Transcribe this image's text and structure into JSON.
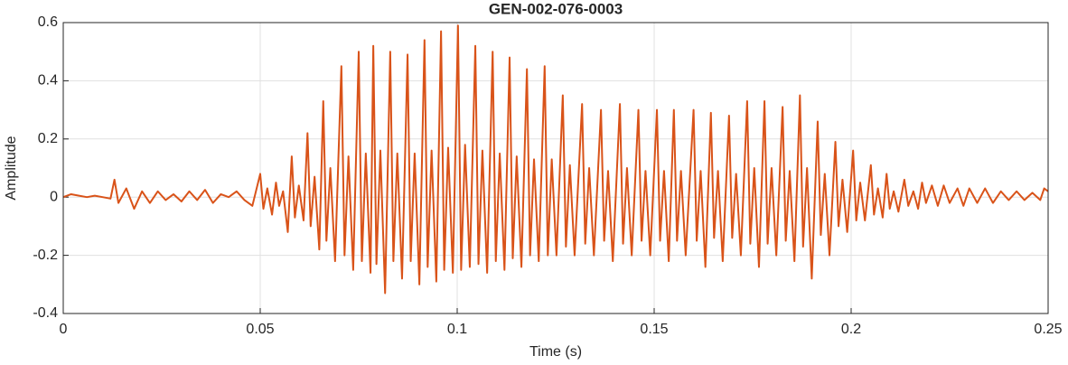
{
  "chart_data": {
    "type": "line",
    "title": "GEN-002-076-0003",
    "x_label": "Time (s)",
    "y_label": "Amplitude",
    "xlim": [
      0,
      0.25
    ],
    "xticks": [
      0,
      0.05,
      0.1,
      0.15,
      0.2,
      0.25
    ],
    "ylim": [
      -0.4,
      0.6
    ],
    "yticks": [
      -0.4,
      -0.2,
      0,
      0.2,
      0.4,
      0.6
    ],
    "grid": true,
    "x": [
      0,
      0.002,
      0.004,
      0.006,
      0.008,
      0.01,
      0.012,
      0.013,
      0.014,
      0.016,
      0.018,
      0.02,
      0.022,
      0.024,
      0.026,
      0.028,
      0.03,
      0.032,
      0.034,
      0.036,
      0.038,
      0.04,
      0.042,
      0.044,
      0.046,
      0.048,
      0.05,
      0.0508,
      0.0518,
      0.053,
      0.054,
      0.0548,
      0.0558,
      0.057,
      0.058,
      0.0588,
      0.0598,
      0.061,
      0.062,
      0.0628,
      0.0638,
      0.065,
      0.066,
      0.0668,
      0.0678,
      0.069,
      0.0706,
      0.0714,
      0.0724,
      0.0736,
      0.075,
      0.0758,
      0.0768,
      0.078,
      0.0787,
      0.0795,
      0.0805,
      0.0817,
      0.083,
      0.0838,
      0.0848,
      0.086,
      0.0874,
      0.0882,
      0.0892,
      0.0904,
      0.0917,
      0.0925,
      0.0935,
      0.0947,
      0.0959,
      0.0967,
      0.0977,
      0.0989,
      0.1002,
      0.101,
      0.102,
      0.1032,
      0.1046,
      0.1054,
      0.1064,
      0.1076,
      0.109,
      0.1098,
      0.1108,
      0.112,
      0.1133,
      0.1141,
      0.1151,
      0.1163,
      0.1177,
      0.1185,
      0.1195,
      0.1207,
      0.1222,
      0.123,
      0.124,
      0.1252,
      0.1268,
      0.1276,
      0.1286,
      0.1298,
      0.1317,
      0.1325,
      0.1335,
      0.1347,
      0.1365,
      0.1373,
      0.1383,
      0.1395,
      0.1413,
      0.1421,
      0.1431,
      0.1443,
      0.146,
      0.1468,
      0.1478,
      0.149,
      0.1507,
      0.1515,
      0.1525,
      0.1537,
      0.155,
      0.1558,
      0.1568,
      0.158,
      0.16,
      0.1608,
      0.1618,
      0.163,
      0.1644,
      0.1652,
      0.1662,
      0.1674,
      0.169,
      0.1698,
      0.1708,
      0.172,
      0.1736,
      0.1744,
      0.1754,
      0.1766,
      0.178,
      0.1788,
      0.1798,
      0.181,
      0.1826,
      0.1834,
      0.1844,
      0.1856,
      0.187,
      0.1878,
      0.1888,
      0.19,
      0.1915,
      0.1923,
      0.1933,
      0.1945,
      0.196,
      0.1968,
      0.1978,
      0.199,
      0.2005,
      0.2013,
      0.2023,
      0.2035,
      0.205,
      0.2058,
      0.2068,
      0.208,
      0.209,
      0.2098,
      0.2108,
      0.212,
      0.2135,
      0.2145,
      0.2158,
      0.217,
      0.218,
      0.219,
      0.2205,
      0.222,
      0.2235,
      0.225,
      0.227,
      0.2285,
      0.23,
      0.232,
      0.234,
      0.236,
      0.238,
      0.24,
      0.242,
      0.244,
      0.246,
      0.248,
      0.249,
      0.25
    ],
    "series": [
      {
        "name": "Amplitude",
        "color": "#d95319",
        "values": [
          0,
          0.01,
          0.005,
          0,
          0.005,
          0,
          -0.005,
          0.06,
          -0.02,
          0.03,
          -0.04,
          0.02,
          -0.02,
          0.02,
          -0.01,
          0.01,
          -0.015,
          0.02,
          -0.01,
          0.025,
          -0.02,
          0.01,
          0,
          0.02,
          -0.01,
          -0.03,
          0.08,
          -0.04,
          0.03,
          -0.06,
          0.05,
          -0.03,
          0.02,
          -0.12,
          0.14,
          -0.07,
          0.04,
          -0.08,
          0.22,
          -0.1,
          0.07,
          -0.18,
          0.33,
          -0.15,
          0.1,
          -0.22,
          0.45,
          -0.2,
          0.14,
          -0.25,
          0.5,
          -0.22,
          0.15,
          -0.26,
          0.52,
          -0.23,
          0.16,
          -0.33,
          0.5,
          -0.22,
          0.15,
          -0.28,
          0.49,
          -0.22,
          0.15,
          -0.3,
          0.54,
          -0.24,
          0.16,
          -0.29,
          0.57,
          -0.25,
          0.17,
          -0.26,
          0.59,
          -0.25,
          0.18,
          -0.24,
          0.52,
          -0.23,
          0.16,
          -0.26,
          0.5,
          -0.22,
          0.15,
          -0.25,
          0.48,
          -0.21,
          0.14,
          -0.24,
          0.44,
          -0.2,
          0.13,
          -0.22,
          0.45,
          -0.2,
          0.13,
          -0.2,
          0.35,
          -0.17,
          0.11,
          -0.2,
          0.32,
          -0.16,
          0.1,
          -0.2,
          0.3,
          -0.15,
          0.09,
          -0.22,
          0.32,
          -0.16,
          0.1,
          -0.2,
          0.3,
          -0.15,
          0.09,
          -0.2,
          0.3,
          -0.15,
          0.09,
          -0.22,
          0.3,
          -0.15,
          0.09,
          -0.2,
          0.3,
          -0.15,
          0.09,
          -0.24,
          0.29,
          -0.14,
          0.09,
          -0.22,
          0.28,
          -0.14,
          0.08,
          -0.2,
          0.33,
          -0.16,
          0.1,
          -0.24,
          0.33,
          -0.16,
          0.1,
          -0.2,
          0.31,
          -0.15,
          0.09,
          -0.22,
          0.35,
          -0.17,
          0.1,
          -0.28,
          0.26,
          -0.13,
          0.08,
          -0.2,
          0.19,
          -0.1,
          0.06,
          -0.12,
          0.16,
          -0.08,
          0.05,
          -0.08,
          0.11,
          -0.06,
          0.03,
          -0.07,
          0.08,
          -0.04,
          0.02,
          -0.05,
          0.06,
          -0.03,
          0.02,
          -0.04,
          0.05,
          -0.02,
          0.04,
          -0.03,
          0.04,
          -0.02,
          0.03,
          -0.03,
          0.03,
          -0.02,
          0.03,
          -0.02,
          0.02,
          -0.01,
          0.02,
          -0.01,
          0.015,
          -0.01,
          0.03,
          0.02
        ]
      }
    ]
  }
}
